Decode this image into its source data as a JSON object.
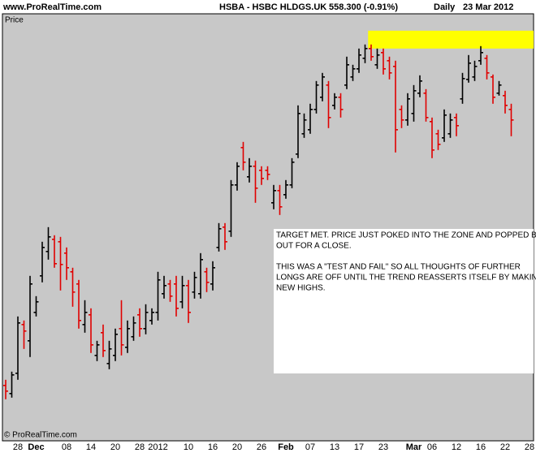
{
  "chart_data": {
    "type": "ohlc",
    "site": "www.ProRealTime.com",
    "symbol": "HSBA - HSBC HLDGS.UK",
    "quote": "558.300 (-0.91%)",
    "period": "Daily",
    "date": "23 Mar 2012",
    "ylabel": "Price",
    "footer": "© ProRealTime.com",
    "background": "#c8c8c8",
    "up_color": "#000000",
    "down_color": "#e00000",
    "ylim": [
      459.5,
      591.0
    ],
    "categories": [
      null,
      null,
      "28",
      null,
      null,
      "Dec",
      null,
      null,
      null,
      null,
      "08",
      null,
      null,
      null,
      "14",
      null,
      null,
      null,
      "20",
      null,
      null,
      null,
      "28",
      null,
      null,
      "2012",
      null,
      null,
      null,
      null,
      "10",
      null,
      null,
      null,
      "16",
      null,
      null,
      null,
      "20",
      null,
      null,
      null,
      "26",
      null,
      null,
      null,
      "Feb",
      null,
      null,
      null,
      "07",
      null,
      null,
      null,
      "13",
      null,
      null,
      null,
      "17",
      null,
      null,
      null,
      "23",
      null,
      null,
      null,
      null,
      "Mar",
      null,
      null,
      "06",
      null,
      null,
      null,
      "12",
      null,
      null,
      null,
      "16",
      null,
      null,
      null,
      "22",
      null,
      null,
      null,
      "28"
    ],
    "open": [
      476.55,
      474.05,
      480.3,
      495.3,
      490.3,
      499.05,
      510.3,
      517.8,
      521.55,
      520.8,
      517.3,
      511.55,
      507.8,
      495.3,
      498.3,
      485.8,
      492.8,
      483.3,
      485.8,
      494.05,
      488.3,
      491.55,
      498.3,
      494.05,
      496.55,
      499.05,
      504.8,
      507.8,
      507.8,
      502.3,
      507.3,
      505.3,
      504.8,
      511.55,
      507.8,
      519.05,
      525.3,
      524.05,
      538.3,
      549.8,
      540.8,
      544.05,
      542.8,
      542.8,
      532.8,
      536.55,
      535.3,
      538.3,
      547.8,
      554.05,
      555.3,
      561.55,
      565.3,
      569.05,
      562.8,
      565.3,
      569.05,
      571.55,
      574.05,
      577.3,
      580.3,
      575.3,
      579.05,
      576.55,
      574.8,
      561.55,
      558.3,
      560.3,
      566.55,
      566.55,
      557.8,
      554.05,
      552.8,
      554.05,
      559.05,
      564.8,
      570.8,
      571.55,
      576.55,
      577.3,
      571.55,
      566.55,
      565.8,
      561.55,
      null,
      null,
      null
    ],
    "high": [
      478.3,
      480.8,
      497.8,
      496.55,
      510.3,
      504.05,
      520.8,
      525.3,
      522.8,
      522.3,
      519.05,
      512.8,
      509.05,
      502.8,
      500.3,
      490.3,
      495.3,
      490.3,
      494.05,
      502.8,
      496.55,
      497.8,
      500.3,
      501.55,
      500.3,
      511.55,
      510.3,
      509.05,
      510.3,
      510.3,
      509.05,
      511.55,
      517.3,
      512.8,
      514.8,
      526.55,
      526.55,
      539.8,
      545.3,
      551.55,
      546.55,
      545.8,
      544.05,
      544.05,
      538.3,
      538.3,
      539.8,
      546.55,
      562.8,
      560.3,
      563.3,
      570.3,
      572.8,
      570.3,
      566.55,
      566.55,
      577.8,
      575.3,
      580.3,
      581.55,
      581.55,
      580.3,
      580.3,
      577.8,
      576.55,
      562.8,
      566.55,
      569.05,
      572.05,
      567.8,
      559.05,
      555.3,
      561.55,
      560.3,
      560.3,
      572.8,
      578.3,
      576.55,
      581.05,
      578.3,
      572.3,
      570.3,
      567.3,
      563.3,
      null,
      null,
      null
    ],
    "low": [
      472.3,
      472.8,
      478.3,
      487.8,
      485.3,
      497.8,
      508.3,
      515.3,
      512.8,
      505.8,
      509.05,
      500.8,
      494.05,
      492.8,
      486.55,
      484.05,
      485.3,
      481.55,
      484.05,
      485.8,
      486.55,
      490.3,
      491.55,
      492.3,
      495.3,
      496.55,
      503.3,
      502.3,
      497.8,
      500.3,
      495.8,
      503.3,
      503.3,
      505.3,
      505.8,
      517.8,
      518.3,
      522.3,
      536.55,
      542.8,
      539.05,
      532.8,
      538.3,
      539.8,
      530.8,
      529.05,
      534.05,
      537.3,
      546.55,
      552.8,
      554.05,
      560.3,
      564.05,
      555.8,
      561.55,
      559.05,
      567.8,
      570.3,
      572.8,
      575.8,
      576.55,
      574.05,
      572.3,
      570.8,
      548.3,
      555.8,
      556.55,
      557.8,
      565.3,
      557.8,
      546.55,
      549.05,
      551.55,
      552.8,
      553.3,
      563.3,
      569.8,
      570.3,
      575.3,
      570.8,
      563.3,
      565.8,
      560.3,
      553.3,
      null,
      null,
      null
    ],
    "close": [
      474.8,
      479.8,
      495.8,
      493.3,
      507.8,
      502.3,
      519.05,
      522.3,
      514.05,
      513.8,
      512.8,
      505.3,
      496.55,
      499.05,
      489.05,
      489.05,
      487.3,
      487.8,
      492.3,
      489.05,
      494.05,
      495.8,
      494.05,
      499.05,
      499.05,
      509.05,
      507.3,
      504.05,
      500.3,
      507.3,
      499.05,
      509.8,
      515.3,
      508.3,
      512.8,
      524.8,
      520.8,
      538.3,
      544.05,
      545.3,
      544.05,
      537.3,
      540.3,
      541.55,
      536.55,
      531.55,
      538.3,
      545.3,
      560.3,
      558.3,
      561.55,
      569.05,
      571.55,
      559.05,
      565.3,
      561.55,
      575.3,
      574.05,
      578.3,
      580.3,
      577.8,
      578.3,
      574.05,
      572.8,
      555.3,
      558.3,
      564.8,
      567.3,
      570.3,
      559.05,
      549.05,
      550.8,
      559.8,
      558.3,
      556.55,
      571.05,
      575.8,
      574.8,
      579.05,
      572.8,
      565.3,
      569.05,
      562.8,
      558.3,
      null,
      null,
      null
    ],
    "zone": {
      "start_index": 60,
      "ylim": [
        580.3,
        585.8
      ],
      "color": "#ffff00"
    },
    "annotation": {
      "color": "#e00000",
      "paragraphs": [
        [
          "TARGET MET. PRICE JUST POKED INTO THE ZONE AND POPPED BACK",
          "OUT FOR A CLOSE."
        ],
        [
          "THIS WAS A \"TEST AND FAIL\" SO ALL THOUGHTS OF FURTHER",
          "LONGS ARE OFF UNTIL THE TREND REASSERTS ITSELF BY MAKING",
          "NEW HIGHS."
        ]
      ]
    }
  }
}
